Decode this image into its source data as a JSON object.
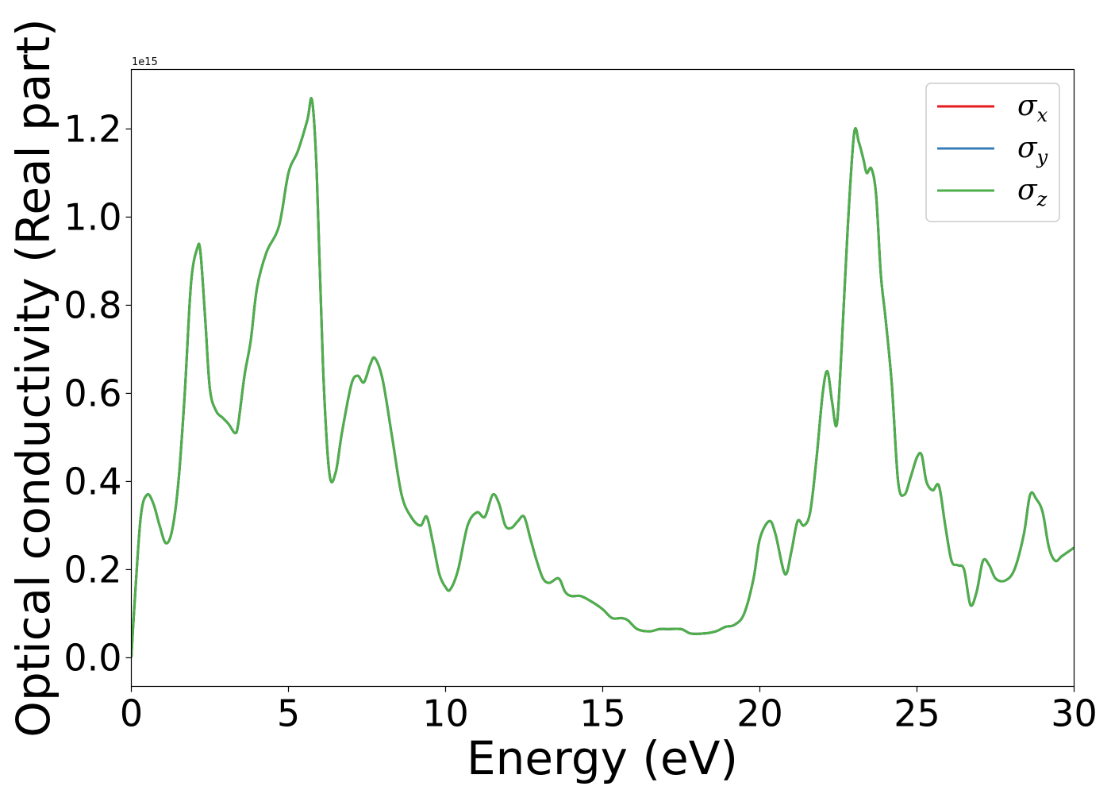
{
  "chart_data": {
    "type": "line",
    "title": "",
    "xlabel": "Energy (eV)",
    "ylabel": "Optical conductivity (Real part)",
    "y_offset_label": "1e15",
    "xlim": [
      0,
      30
    ],
    "ylim": [
      -0.065,
      1.335
    ],
    "xticks": [
      0,
      5,
      10,
      15,
      20,
      25,
      30
    ],
    "xtick_labels": [
      "0",
      "5",
      "10",
      "15",
      "20",
      "25",
      "30"
    ],
    "yticks": [
      0.0,
      0.2,
      0.4,
      0.6,
      0.8,
      1.0,
      1.2
    ],
    "ytick_labels": [
      "0.0",
      "0.2",
      "0.4",
      "0.6",
      "0.8",
      "1.0",
      "1.2"
    ],
    "grid": false,
    "legend_position": "top-right",
    "series": [
      {
        "name": "σ",
        "subscript": "x",
        "color": "#e41a1c"
      },
      {
        "name": "σ",
        "subscript": "y",
        "color": "#377eb8"
      },
      {
        "name": "σ",
        "subscript": "z",
        "color": "#4daf4a"
      }
    ],
    "x": [
      0,
      0.1,
      0.3,
      0.5,
      0.7,
      0.9,
      1.1,
      1.3,
      1.5,
      1.7,
      1.9,
      2.1,
      2.2,
      2.35,
      2.5,
      2.7,
      2.9,
      3.1,
      3.3,
      3.4,
      3.6,
      3.8,
      4.0,
      4.3,
      4.7,
      5.0,
      5.3,
      5.6,
      5.75,
      5.9,
      6.1,
      6.3,
      6.5,
      6.7,
      7.0,
      7.2,
      7.4,
      7.6,
      7.75,
      8.0,
      8.3,
      8.6,
      8.9,
      9.2,
      9.4,
      9.6,
      9.8,
      10.0,
      10.15,
      10.4,
      10.7,
      11.0,
      11.25,
      11.5,
      11.7,
      11.9,
      12.1,
      12.3,
      12.5,
      12.7,
      12.9,
      13.1,
      13.3,
      13.6,
      13.8,
      14.0,
      14.3,
      14.7,
      15.0,
      15.3,
      15.6,
      15.8,
      16.1,
      16.5,
      16.8,
      17.1,
      17.5,
      17.8,
      18.2,
      18.6,
      18.9,
      19.2,
      19.5,
      19.8,
      20.0,
      20.3,
      20.5,
      20.8,
      21.0,
      21.2,
      21.4,
      21.6,
      21.8,
      22.0,
      22.15,
      22.3,
      22.45,
      22.6,
      22.8,
      23.0,
      23.15,
      23.3,
      23.4,
      23.55,
      23.7,
      23.85,
      24.0,
      24.2,
      24.4,
      24.6,
      24.8,
      25.0,
      25.15,
      25.3,
      25.5,
      25.7,
      25.9,
      26.1,
      26.3,
      26.5,
      26.7,
      26.9,
      27.1,
      27.3,
      27.5,
      27.8,
      28.1,
      28.4,
      28.6,
      28.8,
      29.0,
      29.2,
      29.4,
      29.6,
      29.8,
      30.0
    ],
    "values": [
      0.0,
      0.12,
      0.32,
      0.37,
      0.35,
      0.3,
      0.26,
      0.29,
      0.4,
      0.6,
      0.85,
      0.93,
      0.92,
      0.77,
      0.61,
      0.56,
      0.545,
      0.53,
      0.51,
      0.53,
      0.64,
      0.72,
      0.84,
      0.92,
      0.98,
      1.1,
      1.15,
      1.22,
      1.265,
      1.1,
      0.66,
      0.42,
      0.42,
      0.51,
      0.62,
      0.64,
      0.625,
      0.665,
      0.68,
      0.63,
      0.5,
      0.37,
      0.32,
      0.3,
      0.32,
      0.26,
      0.19,
      0.16,
      0.155,
      0.2,
      0.3,
      0.33,
      0.32,
      0.37,
      0.35,
      0.3,
      0.295,
      0.31,
      0.32,
      0.27,
      0.22,
      0.18,
      0.17,
      0.18,
      0.15,
      0.14,
      0.14,
      0.125,
      0.11,
      0.09,
      0.09,
      0.085,
      0.065,
      0.06,
      0.065,
      0.065,
      0.065,
      0.055,
      0.055,
      0.06,
      0.07,
      0.075,
      0.1,
      0.18,
      0.27,
      0.31,
      0.28,
      0.19,
      0.24,
      0.31,
      0.3,
      0.33,
      0.45,
      0.6,
      0.65,
      0.58,
      0.53,
      0.7,
      0.98,
      1.19,
      1.17,
      1.13,
      1.1,
      1.11,
      1.05,
      0.87,
      0.77,
      0.62,
      0.4,
      0.37,
      0.41,
      0.455,
      0.46,
      0.4,
      0.38,
      0.39,
      0.3,
      0.22,
      0.21,
      0.2,
      0.12,
      0.15,
      0.22,
      0.21,
      0.18,
      0.175,
      0.2,
      0.28,
      0.37,
      0.36,
      0.33,
      0.25,
      0.22,
      0.23,
      0.24,
      0.25
    ]
  }
}
